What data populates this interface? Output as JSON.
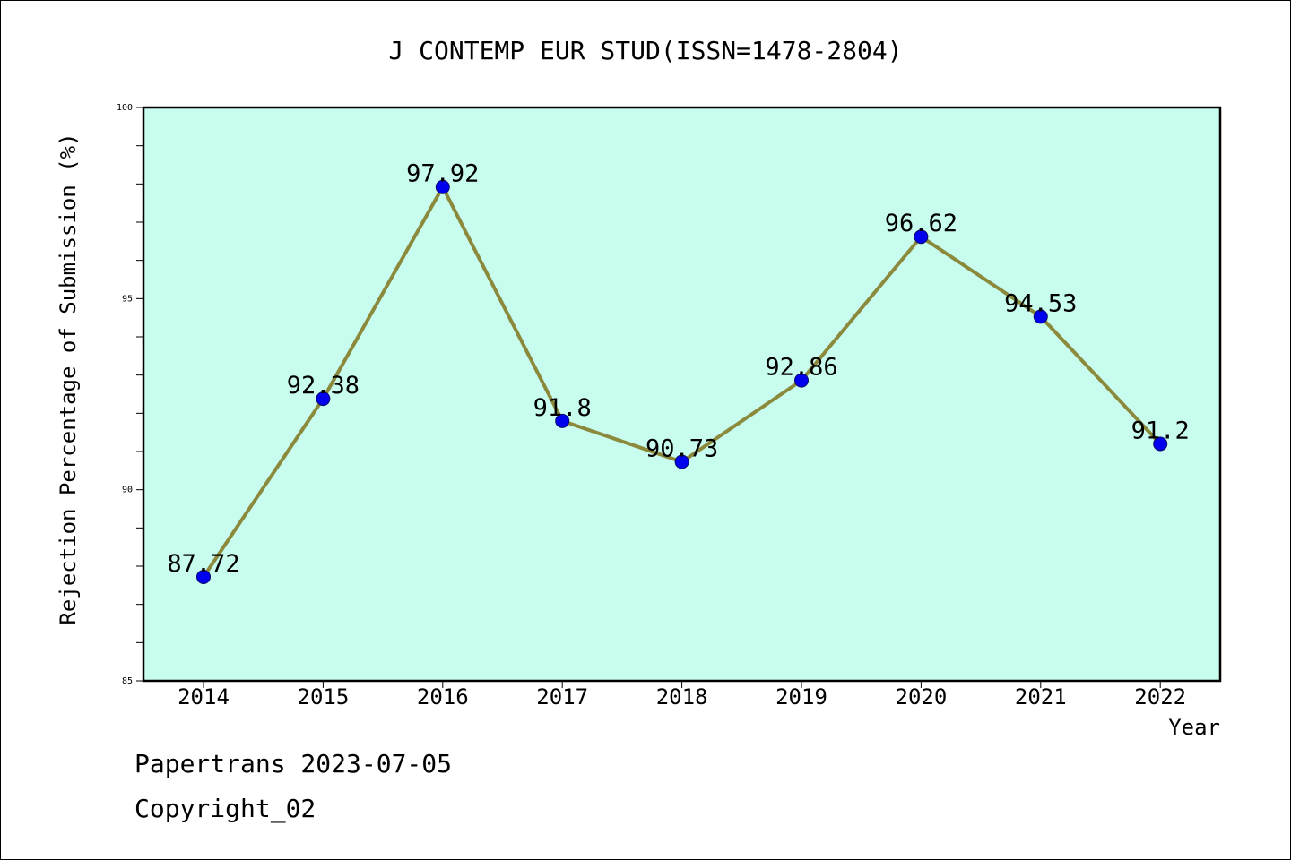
{
  "chart_data": {
    "type": "line",
    "title": "J CONTEMP EUR STUD(ISSN=1478-2804)",
    "xlabel": "Year",
    "ylabel": "Rejection Percentage of Submission (%)",
    "categories": [
      "2014",
      "2015",
      "2016",
      "2017",
      "2018",
      "2019",
      "2020",
      "2021",
      "2022"
    ],
    "values": [
      87.72,
      92.38,
      97.92,
      91.8,
      90.73,
      92.86,
      96.62,
      94.53,
      91.2
    ],
    "data_labels": [
      "87.72",
      "92.38",
      "97.92",
      "91.8",
      "90.73",
      "92.86",
      "96.62",
      "94.53",
      "91.2"
    ],
    "ylim": [
      85,
      100
    ],
    "y_ticks": [
      85,
      90,
      95,
      100
    ],
    "y_minor_tick_step": 1,
    "grid": false,
    "legend": "none",
    "colors": {
      "plot_background": "#c8fcee",
      "line": "#8b8a3c",
      "marker": "#0000ee",
      "marker_edge": "#0a0a6a",
      "axis": "#000000",
      "text": "#000000"
    }
  },
  "footer": {
    "line1": "Papertrans 2023-07-05",
    "line2": "Copyright_02"
  }
}
